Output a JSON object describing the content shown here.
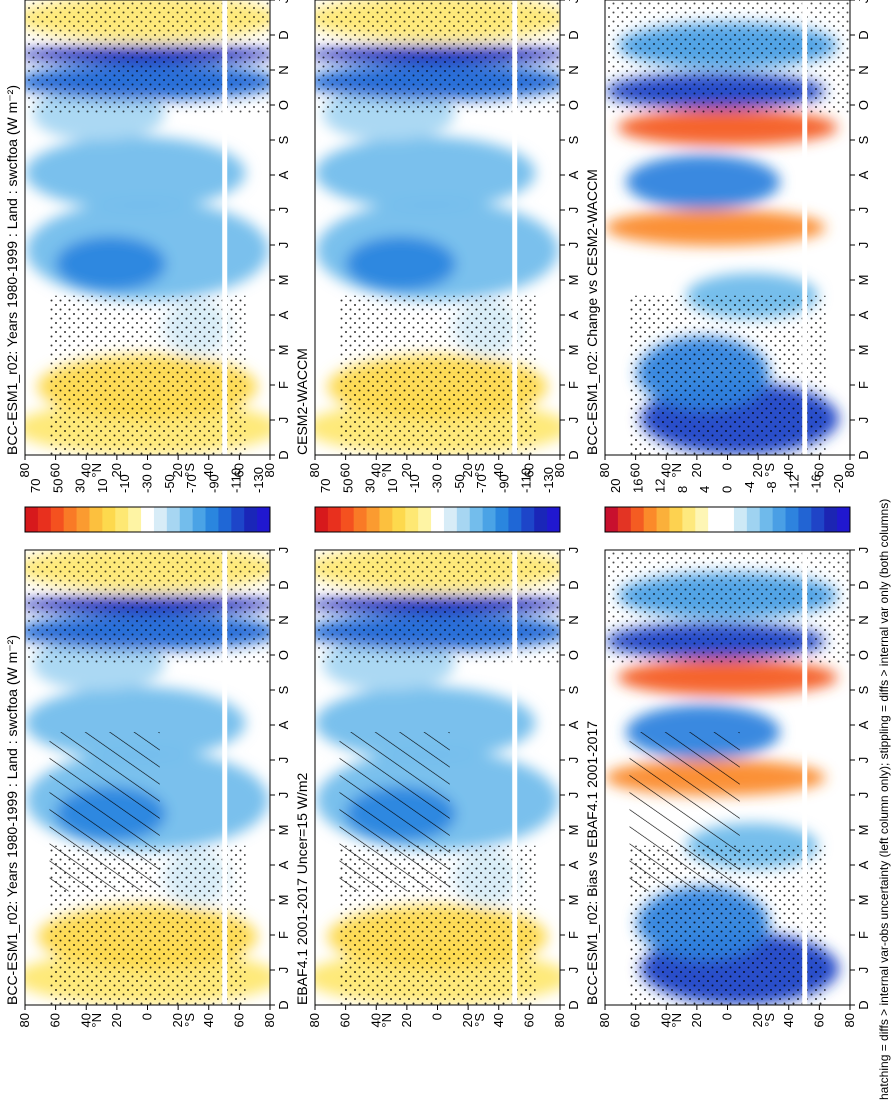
{
  "figure": {
    "footer": "hatching = diffs > internal var-obs uncertainty (left column only); stippling = diffs > internal var only (both columns)"
  },
  "palettes": {
    "abs": [
      "#d7191c",
      "#e8301e",
      "#f4511f",
      "#f97a26",
      "#fb9b30",
      "#fcc03e",
      "#fdd94d",
      "#fee873",
      "#fef4a4",
      "#ffffff",
      "#d7ecf7",
      "#a7d6f2",
      "#73bdec",
      "#4aa3e6",
      "#2a86df",
      "#1f67d6",
      "#1d45c9",
      "#1a26b8",
      "#2018d0"
    ],
    "diff": [
      "#c8102e",
      "#e33424",
      "#f45c22",
      "#fb8a2a",
      "#fbb03a",
      "#fdd250",
      "#fee97e",
      "#fef6b5",
      "#ffffff",
      "#ffffff",
      "#cde9f6",
      "#9fd3f1",
      "#6fbaeb",
      "#4a9fe5",
      "#2e83de",
      "#2264d3",
      "#1f44c7",
      "#1c25b3",
      "#2018cf"
    ]
  },
  "panels": [
    {
      "id": "p1",
      "title": "BCC-ESM1_r02: Years 1980-1999 : Land : swcftoa (W m⁻²)",
      "scale": "abs",
      "cbar_labels": [
        "70",
        "50",
        "30",
        "10",
        "-10",
        "-30",
        "-50",
        "-70",
        "-90",
        "-110",
        "-130"
      ]
    },
    {
      "id": "p2",
      "title": "BCC-ESM1_r02: Years 1980-1999 : Land : swcftoa (W m⁻²)",
      "scale": "abs",
      "cbar_labels": [
        "70",
        "50",
        "30",
        "10",
        "-10",
        "-30",
        "-50",
        "-70",
        "-90",
        "-110",
        "-130"
      ]
    },
    {
      "id": "p3",
      "title": "EBAF4.1 2001-2017 Uncer=15 W/m2",
      "scale": "abs",
      "cbar_labels": [
        "70",
        "50",
        "30",
        "10",
        "-10",
        "-30",
        "-50",
        "-70",
        "-90",
        "-110",
        "-130"
      ]
    },
    {
      "id": "p4",
      "title": "CESM2-WACCM",
      "scale": "abs",
      "cbar_labels": [
        "70",
        "50",
        "30",
        "10",
        "-10",
        "-30",
        "-50",
        "-70",
        "-90",
        "-110",
        "-130"
      ]
    },
    {
      "id": "p5",
      "title": "BCC-ESM1_r02: Bias vs EBAF4.1 2001-2017",
      "scale": "diff",
      "cbar_labels": [
        "20",
        "16",
        "12",
        "8",
        "4",
        "0",
        "-4",
        "-8",
        "-12",
        "-16",
        "-20"
      ]
    },
    {
      "id": "p6",
      "title": "BCC-ESM1_r02: Change vs CESM2-WACCM",
      "scale": "diff",
      "cbar_labels": [
        "20",
        "16",
        "12",
        "8",
        "4",
        "0",
        "-4",
        "-8",
        "-12",
        "-16",
        "-20"
      ]
    }
  ],
  "chart_data": [
    {
      "type": "heatmap",
      "title": "BCC-ESM1_r02: Years 1980-1999 : Land : swcftoa (W m⁻²)",
      "x": [
        "D",
        "J",
        "F",
        "M",
        "A",
        "M",
        "J",
        "J",
        "A",
        "S",
        "O",
        "N",
        "D",
        "J"
      ],
      "y": [
        "80",
        "60",
        "40",
        "20",
        "0",
        "20",
        "40",
        "60",
        "80"
      ],
      "ylabel_n": "°N",
      "ylabel_s": "°S",
      "colorbar": [
        "70",
        "50",
        "30",
        "10",
        "-10",
        "-30",
        "-50",
        "-70",
        "-90",
        "-110",
        "-130"
      ]
    },
    {
      "type": "heatmap",
      "title": "EBAF4.1 2001-2017 Uncer=15 W/m2",
      "x": [
        "D",
        "J",
        "F",
        "M",
        "A",
        "M",
        "J",
        "J",
        "A",
        "S",
        "O",
        "N",
        "D",
        "J"
      ],
      "y": [
        "80",
        "60",
        "40",
        "20",
        "0",
        "20",
        "40",
        "60",
        "80"
      ],
      "colorbar": [
        "70",
        "50",
        "30",
        "10",
        "-10",
        "-30",
        "-50",
        "-70",
        "-90",
        "-110",
        "-130"
      ]
    },
    {
      "type": "heatmap",
      "title": "CESM2-WACCM",
      "x": [
        "D",
        "J",
        "F",
        "M",
        "A",
        "M",
        "J",
        "J",
        "A",
        "S",
        "O",
        "N",
        "D",
        "J"
      ],
      "y": [
        "80",
        "60",
        "40",
        "20",
        "0",
        "20",
        "40",
        "60",
        "80"
      ],
      "colorbar": [
        "70",
        "50",
        "30",
        "10",
        "-10",
        "-30",
        "-50",
        "-70",
        "-90",
        "-110",
        "-130"
      ]
    },
    {
      "type": "heatmap",
      "title": "BCC-ESM1_r02: Bias vs EBAF4.1 2001-2017",
      "x": [
        "D",
        "J",
        "F",
        "M",
        "A",
        "M",
        "J",
        "J",
        "A",
        "S",
        "O",
        "N",
        "D",
        "J"
      ],
      "y": [
        "80",
        "60",
        "40",
        "20",
        "0",
        "20",
        "40",
        "60",
        "80"
      ],
      "colorbar": [
        "20",
        "16",
        "12",
        "8",
        "4",
        "0",
        "-4",
        "-8",
        "-12",
        "-16",
        "-20"
      ]
    },
    {
      "type": "heatmap",
      "title": "BCC-ESM1_r02: Change vs CESM2-WACCM",
      "x": [
        "D",
        "J",
        "F",
        "M",
        "A",
        "M",
        "J",
        "J",
        "A",
        "S",
        "O",
        "N",
        "D",
        "J"
      ],
      "y": [
        "80",
        "60",
        "40",
        "20",
        "0",
        "20",
        "40",
        "60",
        "80"
      ],
      "colorbar": [
        "20",
        "16",
        "12",
        "8",
        "4",
        "0",
        "-4",
        "-8",
        "-12",
        "-16",
        "-20"
      ]
    }
  ],
  "axes": {
    "months": [
      "D",
      "J",
      "F",
      "M",
      "A",
      "M",
      "J",
      "J",
      "A",
      "S",
      "O",
      "N",
      "D",
      "J"
    ],
    "lat_labels": [
      "80",
      "60",
      "40",
      "20",
      "0",
      "20",
      "40",
      "60",
      "80"
    ],
    "north_label": "°N",
    "south_label": "°S"
  }
}
